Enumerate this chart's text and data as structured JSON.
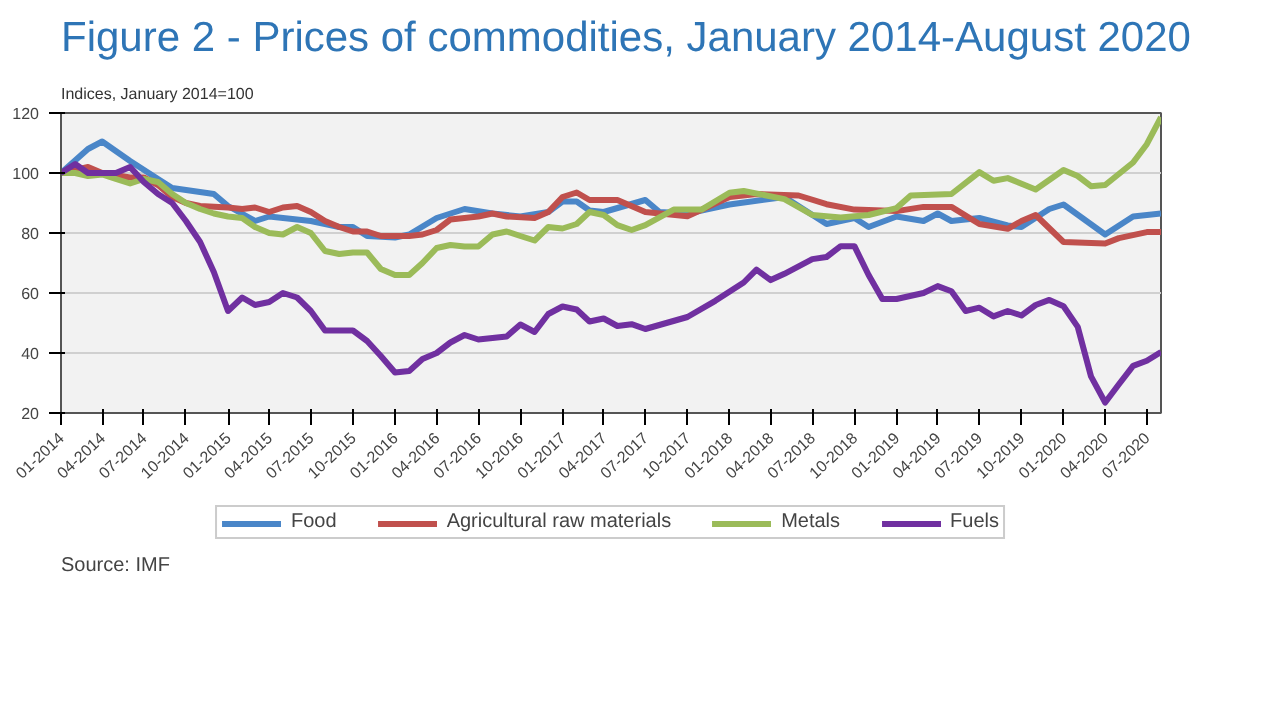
{
  "chart_data": {
    "type": "line",
    "title": "Figure 2 - Prices of commodities, January 2014-August 2020",
    "ylabel": "Indices, January 2014=100",
    "annotations": [
      "Source: IMF"
    ],
    "xlim": [
      "2014-01",
      "2020-08"
    ],
    "ylim": [
      20,
      120
    ],
    "yticks": [
      20,
      40,
      60,
      80,
      100,
      120
    ],
    "xticks": [
      {
        "value": "2014-01",
        "label": "01-2014"
      },
      {
        "value": "2014-04",
        "label": "04-2014"
      },
      {
        "value": "2014-07",
        "label": "07-2014"
      },
      {
        "value": "2014-10",
        "label": "10-2014"
      },
      {
        "value": "2015-01",
        "label": "01-2015"
      },
      {
        "value": "2015-04",
        "label": "04-2015"
      },
      {
        "value": "2015-07",
        "label": "07-2015"
      },
      {
        "value": "2015-10",
        "label": "10-2015"
      },
      {
        "value": "2016-01",
        "label": "01-2016"
      },
      {
        "value": "2016-04",
        "label": "04-2016"
      },
      {
        "value": "2016-07",
        "label": "07-2016"
      },
      {
        "value": "2016-10",
        "label": "10-2016"
      },
      {
        "value": "2017-01",
        "label": "01-2017"
      },
      {
        "value": "2017-04",
        "label": "04-2017"
      },
      {
        "value": "2017-07",
        "label": "07-2017"
      },
      {
        "value": "2017-10",
        "label": "10-2017"
      },
      {
        "value": "2018-01",
        "label": "01-2018"
      },
      {
        "value": "2018-04",
        "label": "04-2018"
      },
      {
        "value": "2018-07",
        "label": "07-2018"
      },
      {
        "value": "2018-10",
        "label": "10-2018"
      },
      {
        "value": "2019-01",
        "label": "01-2019"
      },
      {
        "value": "2019-04",
        "label": "04-2019"
      },
      {
        "value": "2019-07",
        "label": "07-2019"
      },
      {
        "value": "2019-10",
        "label": "10-2019"
      },
      {
        "value": "2020-01",
        "label": "01-2020"
      },
      {
        "value": "2020-04",
        "label": "04-2020"
      },
      {
        "value": "2020-07",
        "label": "07-2020"
      }
    ],
    "grid": "y",
    "legend": "bottom",
    "marker": "none",
    "line_style": "solid",
    "series": [
      {
        "name": "Food",
        "color": "#4a86c8",
        "x": [
          "2014-01",
          "2014-03",
          "2014-04",
          "2014-06",
          "2014-08",
          "2014-09",
          "2014-12",
          "2015-01",
          "2015-03",
          "2015-04",
          "2015-07",
          "2015-09",
          "2015-10",
          "2015-11",
          "2016-01",
          "2016-02",
          "2016-04",
          "2016-06",
          "2016-08",
          "2016-10",
          "2016-12",
          "2017-01",
          "2017-02",
          "2017-03",
          "2017-04",
          "2017-07",
          "2017-08",
          "2017-10",
          "2018-01",
          "2018-05",
          "2018-08",
          "2018-10",
          "2018-11",
          "2019-01",
          "2019-03",
          "2019-04",
          "2019-05",
          "2019-07",
          "2019-09",
          "2019-10",
          "2019-12",
          "2020-01",
          "2020-04",
          "2020-06",
          "2020-08"
        ],
        "values": [
          100,
          108,
          110.5,
          104,
          98,
          95,
          93,
          89,
          84,
          85.5,
          84,
          82,
          82,
          79,
          78.5,
          79.5,
          85,
          88,
          86.5,
          85.5,
          87,
          90.5,
          90.5,
          87.5,
          87,
          91,
          87,
          86.5,
          89.5,
          92,
          83,
          85,
          82,
          85.5,
          84,
          86.5,
          84,
          85,
          82.5,
          82,
          88,
          89.5,
          79.5,
          85.5,
          86.5
        ]
      },
      {
        "name": "Agricultural raw materials",
        "color": "#c0504d",
        "x": [
          "2014-01",
          "2014-02",
          "2014-03",
          "2014-04",
          "2014-06",
          "2014-07",
          "2014-08",
          "2014-09",
          "2014-10",
          "2014-11",
          "2015-01",
          "2015-02",
          "2015-03",
          "2015-04",
          "2015-05",
          "2015-06",
          "2015-07",
          "2015-08",
          "2015-09",
          "2015-10",
          "2015-11",
          "2015-12",
          "2016-02",
          "2016-03",
          "2016-04",
          "2016-05",
          "2016-06",
          "2016-07",
          "2016-08",
          "2016-09",
          "2016-11",
          "2016-12",
          "2017-01",
          "2017-02",
          "2017-03",
          "2017-05",
          "2017-07",
          "2017-10",
          "2018-01",
          "2018-03",
          "2018-06",
          "2018-08",
          "2018-10",
          "2019-01",
          "2019-03",
          "2019-05",
          "2019-07",
          "2019-09",
          "2019-10",
          "2019-11",
          "2020-01",
          "2020-04",
          "2020-05",
          "2020-07",
          "2020-08"
        ],
        "values": [
          100,
          101,
          102,
          100,
          98.5,
          98.5,
          96,
          92,
          90,
          89,
          88.5,
          88,
          88.5,
          87,
          88.5,
          89,
          87,
          84,
          82,
          80.5,
          80.5,
          79,
          79,
          79.5,
          81,
          84.5,
          85,
          85.5,
          86.5,
          85.5,
          85,
          87,
          92,
          93.5,
          91,
          91,
          87,
          85.6,
          92,
          93,
          92.5,
          89.6,
          87.8,
          87.3,
          88.7,
          88.7,
          83,
          81.4,
          84,
          86,
          77,
          76.5,
          78.3,
          80.3,
          80.3
        ]
      },
      {
        "name": "Metals",
        "color": "#9bbb59",
        "x": [
          "2014-01",
          "2014-02",
          "2014-03",
          "2014-04",
          "2014-05",
          "2014-06",
          "2014-07",
          "2014-08",
          "2014-09",
          "2014-10",
          "2014-11",
          "2014-12",
          "2015-01",
          "2015-02",
          "2015-03",
          "2015-04",
          "2015-05",
          "2015-06",
          "2015-07",
          "2015-08",
          "2015-09",
          "2015-10",
          "2015-11",
          "2015-12",
          "2016-01",
          "2016-02",
          "2016-03",
          "2016-04",
          "2016-05",
          "2016-06",
          "2016-07",
          "2016-08",
          "2016-09",
          "2016-10",
          "2016-11",
          "2016-12",
          "2017-01",
          "2017-02",
          "2017-03",
          "2017-04",
          "2017-05",
          "2017-06",
          "2017-07",
          "2017-09",
          "2017-11",
          "2018-01",
          "2018-02",
          "2018-05",
          "2018-07",
          "2018-09",
          "2018-11",
          "2019-01",
          "2019-02",
          "2019-05",
          "2019-07",
          "2019-08",
          "2019-09",
          "2019-11",
          "2020-01",
          "2020-02",
          "2020-03",
          "2020-04",
          "2020-06",
          "2020-07",
          "2020-08"
        ],
        "values": [
          100,
          100,
          99,
          99.5,
          98,
          96.5,
          98,
          97,
          93,
          90,
          88,
          86.5,
          85.5,
          85,
          82,
          80,
          79.5,
          82,
          80,
          74,
          73,
          73.5,
          73.5,
          68,
          66,
          66,
          70,
          75,
          76,
          75.5,
          75.5,
          79.5,
          80.5,
          79,
          77.5,
          82,
          81.5,
          83,
          87,
          86,
          82.6,
          81,
          82.6,
          87.8,
          87.8,
          93.4,
          94,
          91.3,
          86,
          85.2,
          86,
          88.3,
          92.5,
          93,
          100.3,
          97.4,
          98.3,
          94.5,
          101,
          99,
          95.6,
          96,
          103.5,
          109.6,
          118.6
        ]
      },
      {
        "name": "Fuels",
        "color": "#7030a0",
        "x": [
          "2014-01",
          "2014-02",
          "2014-03",
          "2014-04",
          "2014-05",
          "2014-06",
          "2014-07",
          "2014-08",
          "2014-09",
          "2014-10",
          "2014-11",
          "2014-12",
          "2015-01",
          "2015-02",
          "2015-03",
          "2015-04",
          "2015-05",
          "2015-06",
          "2015-07",
          "2015-08",
          "2015-09",
          "2015-10",
          "2015-11",
          "2015-12",
          "2016-01",
          "2016-02",
          "2016-03",
          "2016-04",
          "2016-05",
          "2016-06",
          "2016-07",
          "2016-08",
          "2016-09",
          "2016-10",
          "2016-11",
          "2016-12",
          "2017-01",
          "2017-02",
          "2017-03",
          "2017-04",
          "2017-05",
          "2017-06",
          "2017-07",
          "2017-10",
          "2017-12",
          "2018-02",
          "2018-03",
          "2018-04",
          "2018-05",
          "2018-07",
          "2018-08",
          "2018-09",
          "2018-10",
          "2018-11",
          "2018-12",
          "2019-01",
          "2019-03",
          "2019-04",
          "2019-05",
          "2019-06",
          "2019-07",
          "2019-08",
          "2019-09",
          "2019-10",
          "2019-11",
          "2019-12",
          "2020-01",
          "2020-02",
          "2020-03",
          "2020-04",
          "2020-05",
          "2020-06",
          "2020-07",
          "2020-08"
        ],
        "values": [
          100,
          103,
          100,
          100,
          100,
          102,
          97,
          93,
          90,
          84,
          77,
          67,
          54,
          58.5,
          56,
          57,
          60,
          58.5,
          54,
          47.5,
          47.5,
          47.5,
          44,
          39,
          33.5,
          34,
          38,
          40,
          43.5,
          46,
          44.5,
          45,
          45.5,
          49.5,
          47,
          53,
          55.5,
          54.5,
          50.5,
          51.5,
          49,
          49.6,
          48,
          52,
          57.4,
          63.5,
          67.8,
          64.3,
          66.4,
          71.3,
          72,
          75.6,
          75.6,
          66,
          58,
          58,
          60,
          62.3,
          60.6,
          54,
          55.1,
          52.2,
          54,
          52.5,
          56,
          57.7,
          55.6,
          48.7,
          32.2,
          23.5,
          29.6,
          35.7,
          37.4,
          40.3
        ]
      }
    ]
  }
}
